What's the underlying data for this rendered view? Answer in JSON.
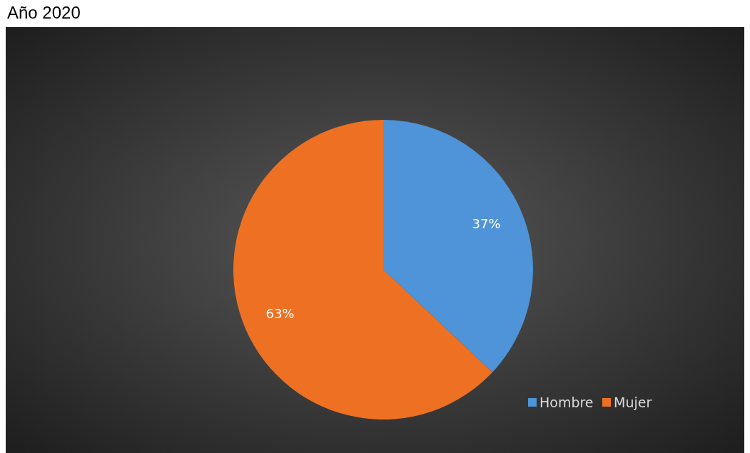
{
  "chart_data": {
    "type": "pie",
    "title": "Año 2020",
    "categories": [
      "Hombre",
      "Mujer"
    ],
    "values": [
      37,
      63
    ],
    "colors": [
      "#4f93d8",
      "#ee7123"
    ],
    "value_labels": [
      "37%",
      "63%"
    ],
    "legend": "bottom right"
  }
}
